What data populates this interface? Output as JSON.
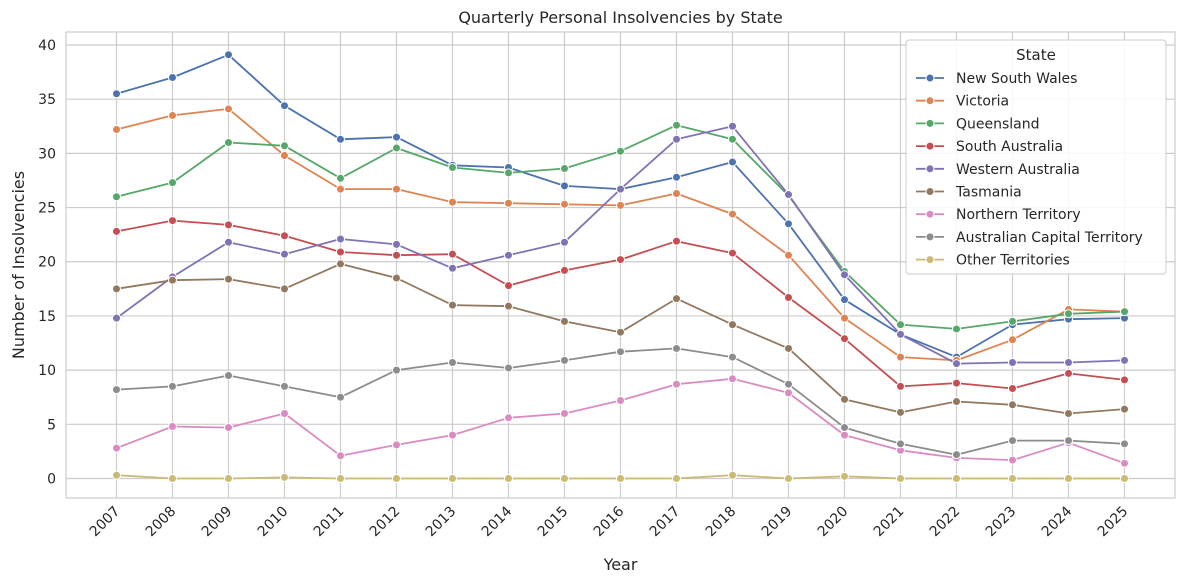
{
  "chart_data": {
    "type": "line",
    "title": "Quarterly Personal Insolvencies by State",
    "xlabel": "Year",
    "ylabel": "Number of Insolvencies",
    "x": [
      "2007",
      "2008",
      "2009",
      "2010",
      "2011",
      "2012",
      "2013",
      "2014",
      "2015",
      "2016",
      "2017",
      "2018",
      "2019",
      "2020",
      "2021",
      "2022",
      "2023",
      "2024",
      "2025"
    ],
    "ylim": [
      -1.8,
      41.2
    ],
    "yticks": [
      0,
      5,
      10,
      15,
      20,
      25,
      30,
      35,
      40
    ],
    "grid": true,
    "legend_title": "State",
    "legend_position": "top-right",
    "series": [
      {
        "name": "New South Wales",
        "color": "#4c72b0",
        "values": [
          35.5,
          37.0,
          39.1,
          34.4,
          31.3,
          31.5,
          28.9,
          28.7,
          27.0,
          26.7,
          27.8,
          29.2,
          23.5,
          16.5,
          13.3,
          11.2,
          14.2,
          14.7,
          14.8
        ]
      },
      {
        "name": "Victoria",
        "color": "#dd8452",
        "values": [
          32.2,
          33.5,
          34.1,
          29.8,
          26.7,
          26.7,
          25.5,
          25.4,
          25.3,
          25.2,
          26.3,
          24.4,
          20.6,
          14.8,
          11.2,
          10.9,
          12.8,
          15.6,
          15.4
        ]
      },
      {
        "name": "Queensland",
        "color": "#55a868",
        "values": [
          26.0,
          27.3,
          31.0,
          30.7,
          27.7,
          30.5,
          28.7,
          28.2,
          28.6,
          30.2,
          32.6,
          31.3,
          26.1,
          19.1,
          14.2,
          13.8,
          14.5,
          15.2,
          15.4
        ]
      },
      {
        "name": "South Australia",
        "color": "#c44e52",
        "values": [
          22.8,
          23.8,
          23.4,
          22.4,
          20.9,
          20.6,
          20.7,
          17.8,
          19.2,
          20.2,
          21.9,
          20.8,
          16.7,
          12.9,
          8.5,
          8.8,
          8.3,
          9.7,
          9.1
        ]
      },
      {
        "name": "Western Australia",
        "color": "#8172b3",
        "values": [
          14.8,
          18.6,
          21.8,
          20.7,
          22.1,
          21.6,
          19.4,
          20.6,
          21.8,
          26.7,
          31.3,
          32.5,
          26.2,
          18.8,
          13.3,
          10.6,
          10.7,
          10.7,
          10.9
        ]
      },
      {
        "name": "Tasmania",
        "color": "#937860",
        "values": [
          17.5,
          18.3,
          18.4,
          17.5,
          19.8,
          18.5,
          16.0,
          15.9,
          14.5,
          13.5,
          16.6,
          14.2,
          12.0,
          7.3,
          6.1,
          7.1,
          6.8,
          6.0,
          6.4
        ]
      },
      {
        "name": "Northern Territory",
        "color": "#da8bc3",
        "values": [
          2.8,
          4.8,
          4.7,
          6.0,
          2.1,
          3.1,
          4.0,
          5.6,
          6.0,
          7.2,
          8.7,
          9.2,
          7.9,
          4.0,
          2.6,
          1.9,
          1.7,
          3.3,
          1.4
        ]
      },
      {
        "name": "Australian Capital Territory",
        "color": "#8c8c8c",
        "values": [
          8.2,
          8.5,
          9.5,
          8.5,
          7.5,
          10.0,
          10.7,
          10.2,
          10.9,
          11.7,
          12.0,
          11.2,
          8.7,
          4.7,
          3.2,
          2.2,
          3.5,
          3.5,
          3.2
        ]
      },
      {
        "name": "Other Territories",
        "color": "#ccb974",
        "values": [
          0.3,
          0.0,
          0.0,
          0.1,
          0.0,
          0.0,
          0.0,
          0.0,
          0.0,
          0.0,
          0.0,
          0.3,
          0.0,
          0.2,
          0.0,
          0.0,
          0.0,
          0.0,
          0.0
        ]
      }
    ]
  }
}
